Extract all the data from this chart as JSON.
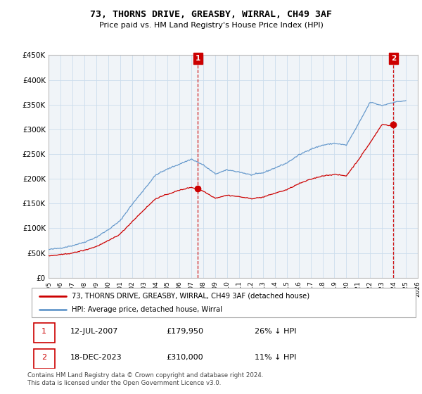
{
  "title": "73, THORNS DRIVE, GREASBY, WIRRAL, CH49 3AF",
  "subtitle": "Price paid vs. HM Land Registry's House Price Index (HPI)",
  "legend_line1": "73, THORNS DRIVE, GREASBY, WIRRAL, CH49 3AF (detached house)",
  "legend_line2": "HPI: Average price, detached house, Wirral",
  "footnote": "Contains HM Land Registry data © Crown copyright and database right 2024.\nThis data is licensed under the Open Government Licence v3.0.",
  "hpi_color": "#6699cc",
  "property_color": "#cc0000",
  "vline_color": "#cc0000",
  "annotation_box_color": "#cc0000",
  "grid_color": "#ccdded",
  "bg_color": "#f0f4f8",
  "ylim_min": 0,
  "ylim_max": 450000,
  "yticks": [
    0,
    50000,
    100000,
    150000,
    200000,
    250000,
    300000,
    350000,
    400000,
    450000
  ],
  "ytick_labels": [
    "£0",
    "£50K",
    "£100K",
    "£150K",
    "£200K",
    "£250K",
    "£300K",
    "£350K",
    "£400K",
    "£450K"
  ],
  "sale1_x": 2007.53,
  "sale1_y": 179950,
  "sale2_x": 2023.96,
  "sale2_y": 310000,
  "ann1_date": "12-JUL-2007",
  "ann1_price": "£179,950",
  "ann1_pct": "26% ↓ HPI",
  "ann2_date": "18-DEC-2023",
  "ann2_price": "£310,000",
  "ann2_pct": "11% ↓ HPI",
  "xmin": 1995,
  "xmax": 2026,
  "xticks": [
    1995,
    1996,
    1997,
    1998,
    1999,
    2000,
    2001,
    2002,
    2003,
    2004,
    2005,
    2006,
    2007,
    2008,
    2009,
    2010,
    2011,
    2012,
    2013,
    2014,
    2015,
    2016,
    2017,
    2018,
    2019,
    2020,
    2021,
    2022,
    2023,
    2024,
    2025,
    2026
  ]
}
